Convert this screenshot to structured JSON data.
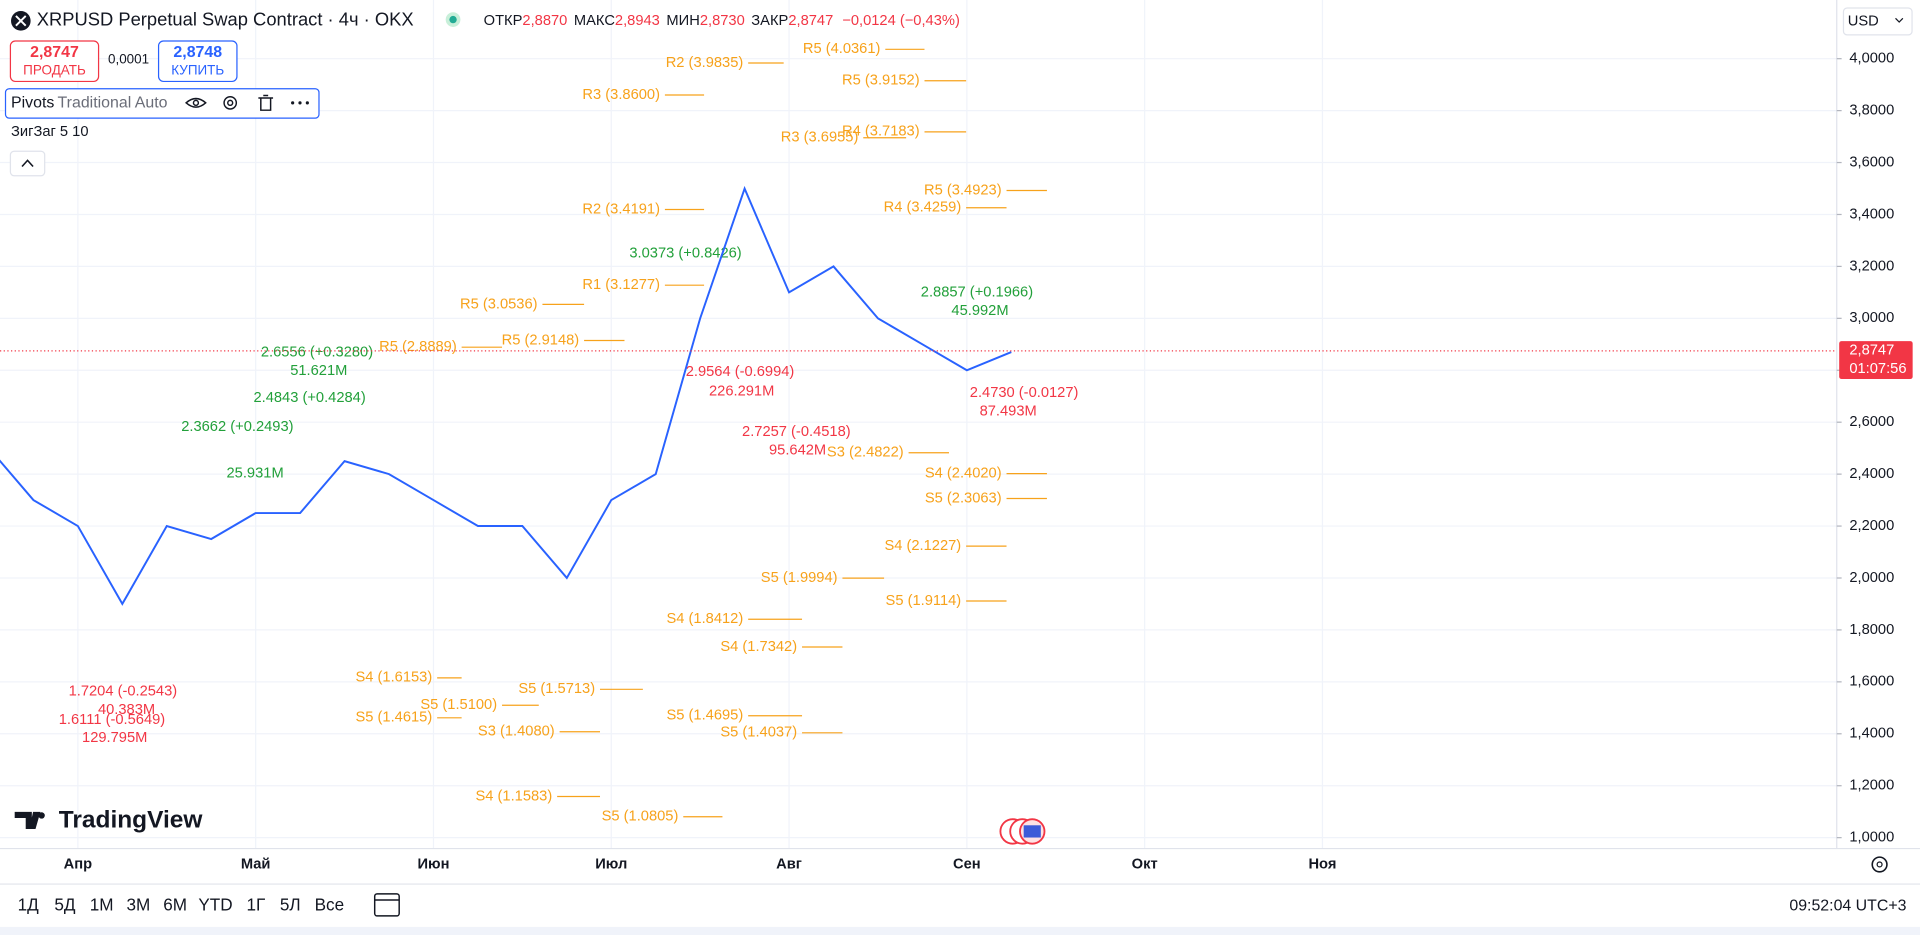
{
  "header": {
    "symbol": "XRPUSD Perpetual Swap Contract · 4ч · OKX",
    "ohlc": [
      {
        "label": "ОТКР",
        "value": "2,8870"
      },
      {
        "label": "МАКС",
        "value": "2,8943"
      },
      {
        "label": "МИН",
        "value": "2,8730"
      },
      {
        "label": "ЗАКР",
        "value": "2,8747"
      }
    ],
    "change": "−0,0124 (−0,43%)"
  },
  "trade": {
    "sell_price": "2,8747",
    "sell": "ПРОДАТЬ",
    "spread": "0,0001",
    "buy_price": "2,8748",
    "buy": "КУПИТЬ"
  },
  "indicators": {
    "pivots_name": "Pivots",
    "pivots_params": "Traditional Auto",
    "zigzag": "ЗигЗаг 5 10"
  },
  "currency": "USD",
  "logo": "TradingView",
  "timeframes": [
    "1Д",
    "5Д",
    "1М",
    "3М",
    "6М",
    "YTD",
    "1Г",
    "5Л",
    "Все"
  ],
  "clock": "09:52:04 UTC+3",
  "chart_data": {
    "type": "line",
    "categories": [
      null,
      null,
      "Апр",
      null,
      null,
      null,
      "Май",
      null,
      null,
      null,
      "Июн",
      null,
      null,
      null,
      "Июл",
      null,
      null,
      null,
      "Авг",
      null,
      null,
      null,
      "Сен",
      null,
      null,
      null,
      "Окт",
      null,
      null,
      null,
      "Ноя",
      null,
      null,
      null,
      null,
      null,
      null,
      null,
      null,
      null,
      null,
      null
    ],
    "values": [
      2.5,
      2.3,
      2.2,
      1.9,
      2.2,
      2.15,
      2.25,
      2.25,
      2.45,
      2.4,
      2.3,
      2.2,
      2.2,
      2.0,
      2.3,
      2.4,
      3.0,
      3.5,
      3.1,
      3.2,
      3.0,
      2.9,
      2.8,
      2.87,
      null,
      null,
      null,
      null,
      null,
      null,
      null,
      null,
      null,
      null,
      null,
      null,
      null,
      null,
      null,
      null,
      null,
      null
    ],
    "color": "#2962ff",
    "ylim": [
      0.958,
      4.226
    ],
    "yticks": [
      {
        "value": 1.0,
        "label": "1,0000"
      },
      {
        "value": 1.2,
        "label": "1,2000"
      },
      {
        "value": 1.4,
        "label": "1,4000"
      },
      {
        "value": 1.6,
        "label": "1,6000"
      },
      {
        "value": 1.8,
        "label": "1,8000"
      },
      {
        "value": 2.0,
        "label": "2,0000"
      },
      {
        "value": 2.2,
        "label": "2,2000"
      },
      {
        "value": 2.4,
        "label": "2,4000"
      },
      {
        "value": 2.6,
        "label": "2,6000"
      },
      {
        "value": 2.8,
        "label": "2,8000"
      },
      {
        "value": 3.0,
        "label": "3,0000"
      },
      {
        "value": 3.2,
        "label": "3,2000"
      },
      {
        "value": 3.4,
        "label": "3,4000"
      },
      {
        "value": 3.6,
        "label": "3,6000"
      },
      {
        "value": 3.8,
        "label": "3,8000"
      },
      {
        "value": 4.0,
        "label": "4,0000"
      }
    ],
    "grid": true,
    "last_price": 2.8747,
    "last_price_label": "2,8747",
    "countdown": "01:07:56",
    "last_price_color": "#f23645",
    "pivot_color": "#f7a21b",
    "pivots": [
      {
        "label": "R5 (4.0361)",
        "value": 4.0361
      },
      {
        "label": "R2 (3.9835)",
        "value": 3.9835
      },
      {
        "label": "R5 (3.9152)",
        "value": 3.9152
      },
      {
        "label": "R4 (3.7183)",
        "value": 3.7183
      },
      {
        "label": "R3 (3.6955)",
        "value": 3.6955
      },
      {
        "label": "R5 (3.4923)",
        "value": 3.4923
      },
      {
        "label": "R4 (3.4259)",
        "value": 3.4259
      },
      {
        "label": "R2 (3.4191)",
        "value": 3.4191
      },
      {
        "label": "R1 (3.1277)",
        "value": 3.1277
      },
      {
        "label": "R5 (3.0536)",
        "value": 3.0536
      },
      {
        "label": "S3 (2.4822)",
        "value": 2.4822
      },
      {
        "label": "S4 (2.4020)",
        "value": 2.402
      },
      {
        "label": "S5 (2.3063)",
        "value": 2.3063
      },
      {
        "label": "S4 (2.1227)",
        "value": 2.1227
      },
      {
        "label": "S5 (1.9114)",
        "value": 1.9114
      },
      {
        "label": "S5 (1.9994)",
        "value": 1.9994
      },
      {
        "label": "S4 (1.8412)",
        "value": 1.8412
      },
      {
        "label": "S4 (1.7342)",
        "value": 1.7342
      },
      {
        "label": "S5 (1.4037)",
        "value": 1.4037
      },
      {
        "label": "S5 (1.4695)",
        "value": 1.4695
      },
      {
        "label": "S5 (1.0805)",
        "value": 1.0805
      },
      {
        "label": "S4 (1.1583)",
        "value": 1.1583
      },
      {
        "label": "S5 (1.4615)",
        "value": 1.4615
      },
      {
        "label": "S3 (1.4080)",
        "value": 1.408
      },
      {
        "label": "S4 (1.6153)",
        "value": 1.6153
      },
      {
        "label": "S5 (1.5100)",
        "value": 1.51
      },
      {
        "label": "S5 (1.5713)",
        "value": 1.5713
      },
      {
        "label": "R3 (3.8600)",
        "value": 3.86
      },
      {
        "label": "R5 (2.9148)",
        "value": 2.9148
      },
      {
        "label": "R5 (2.8889)",
        "value": 2.8889
      }
    ],
    "annotations": [
      {
        "text": "2.8857 (+0.1966)",
        "color": "#22a03a"
      },
      {
        "text": "45.992M",
        "color": "#22a03a"
      },
      {
        "text": "2.4730 (-0.0127)",
        "color": "#f23645"
      },
      {
        "text": "87.493M",
        "color": "#f23645"
      },
      {
        "text": "1.7204 (-0.2543)",
        "color": "#f23645"
      },
      {
        "text": "40.383M",
        "color": "#f23645"
      },
      {
        "text": "1.6111 (-0.5649)",
        "color": "#f23645"
      },
      {
        "text": "129.795M",
        "color": "#f23645"
      },
      {
        "text": "2.6556 (+0.3280)",
        "color": "#22a03a"
      },
      {
        "text": "51.621M",
        "color": "#22a03a"
      },
      {
        "text": "3.0373 (+0.8426)",
        "color": "#22a03a"
      },
      {
        "text": "226.291M",
        "color": "#f23645"
      },
      {
        "text": "2.9564 (-0.6994)",
        "color": "#f23645"
      },
      {
        "text": "95.642M",
        "color": "#f23645"
      },
      {
        "text": "2.7257 (-0.4518)",
        "color": "#f23645"
      },
      {
        "text": "2.3662 (+0.2493)",
        "color": "#22a03a"
      },
      {
        "text": "25.931M",
        "color": "#22a03a"
      },
      {
        "text": "2.4843 (+0.4284)",
        "color": "#22a03a"
      }
    ]
  }
}
